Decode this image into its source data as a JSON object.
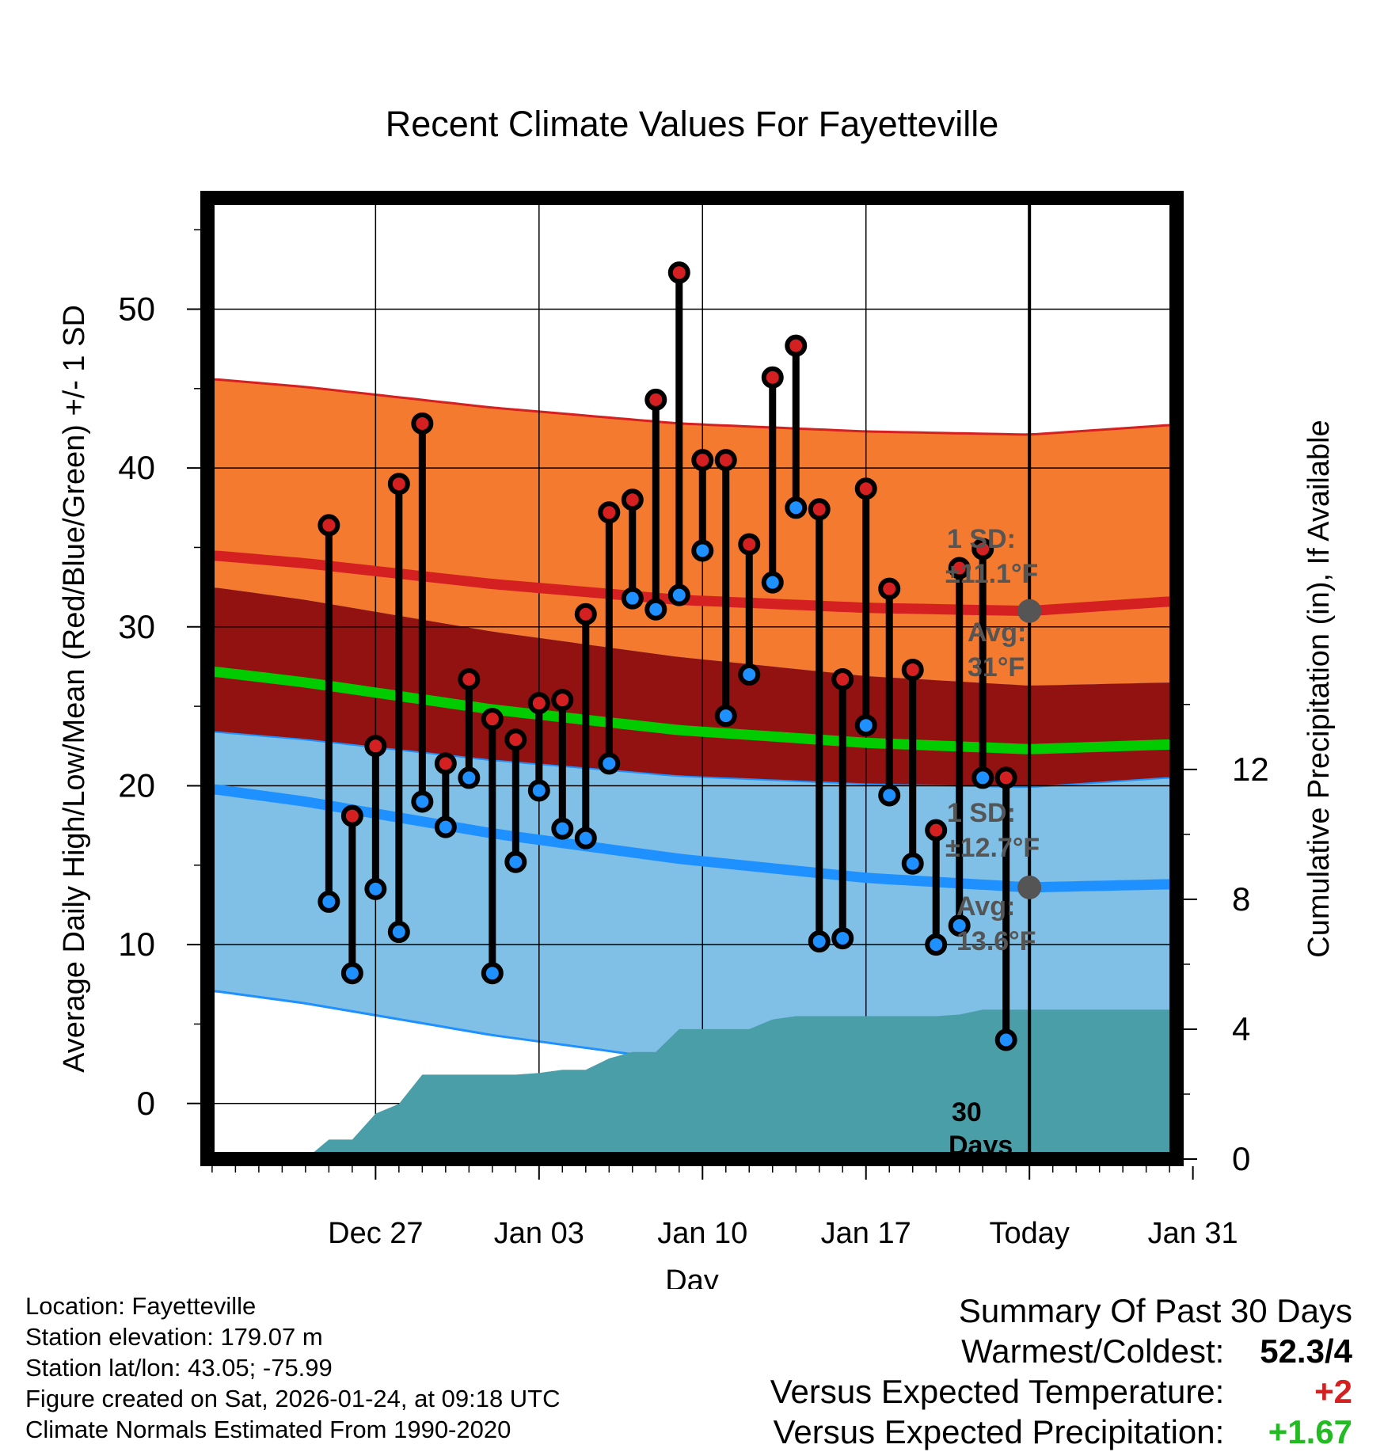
{
  "chart_data": {
    "type": "line",
    "title": "Recent Climate Values For Fayetteville",
    "xlabel": "Day",
    "ylabel_left": "Average Daily High/Low/Mean (Red/Blue/Green) +/- 1 SD",
    "ylabel_right": "Cumulative Precipitation (in), If Available",
    "ylim_left": [
      -3.5,
      57
    ],
    "ylim_right": [
      0,
      29.6
    ],
    "xlim_days": [
      -4.2,
      37.3
    ],
    "x_ticks": [
      {
        "day": 3,
        "label": "Dec 27"
      },
      {
        "day": 10,
        "label": "Jan 03"
      },
      {
        "day": 17,
        "label": "Jan 10"
      },
      {
        "day": 24,
        "label": "Jan 17"
      },
      {
        "day": 31,
        "label": "Today"
      },
      {
        "day": 38,
        "label": "Jan 31"
      }
    ],
    "y_ticks_left": [
      0,
      10,
      20,
      30,
      40,
      50
    ],
    "y_ticks_right": [
      0,
      4,
      8,
      12
    ],
    "normal_high": {
      "days": [
        -4,
        0,
        8,
        16,
        24,
        31,
        37
      ],
      "values": [
        34.5,
        34.0,
        32.7,
        31.7,
        31.2,
        31.0,
        31.6
      ]
    },
    "normal_high_sd": 11.1,
    "normal_low": {
      "days": [
        -4,
        0,
        8,
        16,
        24,
        31,
        37
      ],
      "values": [
        19.8,
        19.0,
        17.0,
        15.4,
        14.2,
        13.6,
        13.8
      ]
    },
    "normal_low_sd": 12.7,
    "normal_mean": {
      "days": [
        -4,
        0,
        8,
        16,
        24,
        31,
        37
      ],
      "values": [
        27.2,
        26.5,
        24.8,
        23.5,
        22.7,
        22.3,
        22.6
      ]
    },
    "series": [
      {
        "name": "High",
        "color": "#d42020",
        "values": [
          36.4,
          18.1,
          22.5,
          39.0,
          42.8,
          21.4,
          26.7,
          24.2,
          22.9,
          25.2,
          25.4,
          30.8,
          37.2,
          38.0,
          44.3,
          52.3,
          40.5,
          40.5,
          35.2,
          45.7,
          47.7,
          37.4,
          26.7,
          38.7,
          32.4,
          27.3,
          17.2,
          33.7,
          34.9,
          20.5
        ]
      },
      {
        "name": "Low",
        "color": "#1e90ff",
        "values": [
          12.7,
          8.2,
          13.5,
          10.8,
          19.0,
          17.4,
          20.5,
          8.2,
          15.2,
          19.7,
          17.3,
          16.7,
          21.4,
          31.8,
          31.1,
          32.0,
          34.8,
          24.4,
          27.0,
          32.8,
          37.5,
          10.2,
          10.4,
          23.8,
          19.4,
          15.1,
          10.0,
          11.2,
          20.5,
          4.0
        ]
      }
    ],
    "precip_cumulative": {
      "days": [
        0,
        1,
        2,
        3,
        4,
        5,
        6,
        7,
        8,
        9,
        10,
        11,
        12,
        13,
        14,
        15,
        16,
        17,
        18,
        19,
        20,
        21,
        22,
        23,
        24,
        25,
        26,
        27,
        28,
        29,
        30,
        31,
        37
      ],
      "values": [
        0,
        0.6,
        0.6,
        1.4,
        1.7,
        2.6,
        2.6,
        2.6,
        2.6,
        2.6,
        2.65,
        2.75,
        2.75,
        3.1,
        3.3,
        3.3,
        4.0,
        4.0,
        4.0,
        4.0,
        4.3,
        4.4,
        4.4,
        4.4,
        4.4,
        4.4,
        4.4,
        4.4,
        4.45,
        4.6,
        4.6,
        4.6,
        4.6
      ]
    },
    "annotations": {
      "high_sd_label": "1 SD:",
      "high_sd_value": "±11.1°F",
      "high_avg_label": "Avg:",
      "high_avg_value": "31°F",
      "low_sd_label": "1 SD:",
      "low_sd_value": "±12.7°F",
      "low_avg_label": "Avg:",
      "low_avg_value": "13.6°F",
      "days_count": "30",
      "days_word": "Days"
    }
  },
  "colors": {
    "high_band": "#f47a30",
    "mid_band": "#921212",
    "low_band": "#80c0e6",
    "high_line": "#d42020",
    "mean_line": "#00cc00",
    "low_line": "#1e90ff",
    "precip_fill": "#4a9ea8",
    "annotation_text": "#555555",
    "warm_value": "#d42020",
    "precip_value": "#22bb22"
  },
  "meta": {
    "location": "Location: Fayetteville",
    "elevation": "Station elevation: 179.07 m",
    "latlon": "Station lat/lon: 43.05; -75.99",
    "created": "Figure created on Sat, 2026-01-24, at 09:18 UTC",
    "normals": "Climate Normals Estimated From 1990-2020"
  },
  "summary": {
    "title": "Summary Of Past 30 Days",
    "warm_cold_label": "Warmest/Coldest:",
    "warm_cold_value": "52.3/4",
    "temp_label": "Versus Expected Temperature:",
    "temp_value": "+2",
    "precip_label": "Versus Expected Precipitation:",
    "precip_value": "+1.67"
  }
}
